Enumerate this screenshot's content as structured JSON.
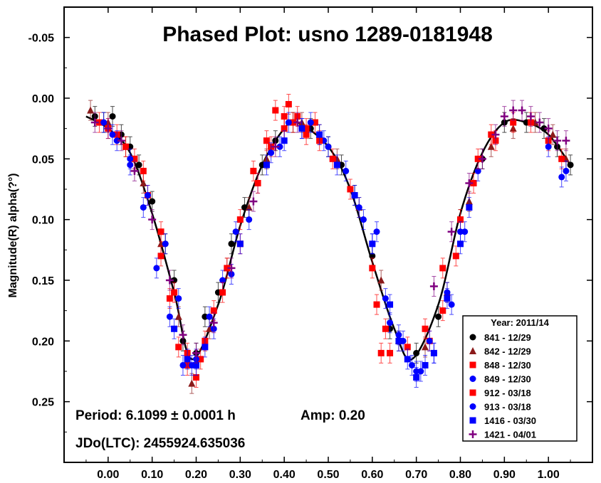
{
  "chart_data": {
    "type": "scatter",
    "title": "Phased Plot: usno 1289-0181948",
    "xlabel": "",
    "ylabel": "Magnitude(R) alpha(?°)",
    "xlim": [
      -0.1,
      1.1
    ],
    "ylim": [
      -0.075,
      0.3
    ],
    "y_inverted": true,
    "grid": false,
    "x_ticks": [
      0.0,
      0.1,
      0.2,
      0.3,
      0.4,
      0.5,
      0.6,
      0.7,
      0.8,
      0.9,
      1.0
    ],
    "x_tick_labels": [
      "0.00",
      "0.10",
      "0.20",
      "0.30",
      "0.40",
      "0.50",
      "0.60",
      "0.70",
      "0.80",
      "0.90",
      "1.00"
    ],
    "y_ticks": [
      -0.05,
      0.0,
      0.05,
      0.1,
      0.15,
      0.2,
      0.25
    ],
    "y_tick_labels": [
      "-0.05",
      "0.00",
      "0.05",
      "0.10",
      "0.15",
      "0.20",
      "0.25"
    ],
    "annotations": {
      "period": "Period: 6.1099 ± 0.0001 h",
      "amp": "Amp: 0.20",
      "jdo": "JDo(LTC): 2455924.635036"
    },
    "legend": {
      "position": "bottom-right",
      "title": "Year: 2011/14",
      "entries": [
        {
          "label": "841 - 12/29",
          "marker": "circle",
          "color": "#000000"
        },
        {
          "label": "842 - 12/29",
          "marker": "triangle",
          "color": "#8b1a1a"
        },
        {
          "label": "848 - 12/30",
          "marker": "square",
          "color": "#ff0000"
        },
        {
          "label": "849 - 12/30",
          "marker": "circle",
          "color": "#0000ff"
        },
        {
          "label": "912 - 03/18",
          "marker": "square",
          "color": "#ff0000"
        },
        {
          "label": "913 - 03/18",
          "marker": "circle",
          "color": "#0000ff"
        },
        {
          "label": "1416 - 03/30",
          "marker": "square",
          "color": "#0000ff"
        },
        {
          "label": "1421 - 04/01",
          "marker": "plus",
          "color": "#800080"
        }
      ]
    },
    "fit_curve": {
      "description_points_x": [
        -0.05,
        0.0,
        0.05,
        0.1,
        0.15,
        0.19,
        0.25,
        0.3,
        0.35,
        0.4,
        0.43,
        0.5,
        0.55,
        0.6,
        0.65,
        0.69,
        0.75,
        0.8,
        0.85,
        0.9,
        0.95,
        1.0,
        1.05
      ],
      "description_points_y": [
        0.015,
        0.025,
        0.045,
        0.095,
        0.16,
        0.215,
        0.17,
        0.105,
        0.055,
        0.025,
        0.02,
        0.04,
        0.075,
        0.135,
        0.19,
        0.215,
        0.17,
        0.095,
        0.045,
        0.02,
        0.02,
        0.03,
        0.055
      ]
    },
    "series": [
      {
        "name": "841 - 12/29",
        "marker": "circle",
        "color": "#000000",
        "x": [
          -0.03,
          -0.01,
          0.01,
          0.03,
          0.05,
          0.07,
          0.1,
          0.13,
          0.15,
          0.17,
          0.2,
          0.22,
          0.25,
          0.28,
          0.31,
          0.35,
          0.38,
          0.42,
          0.46,
          0.5,
          0.53,
          0.56,
          0.6,
          0.64,
          0.7,
          0.75,
          0.8,
          0.85,
          0.9,
          0.95,
          0.99,
          1.02,
          1.05
        ],
        "y": [
          0.015,
          0.02,
          0.015,
          0.03,
          0.04,
          0.055,
          0.085,
          0.12,
          0.15,
          0.2,
          0.21,
          0.18,
          0.16,
          0.12,
          0.09,
          0.055,
          0.035,
          0.02,
          0.025,
          0.04,
          0.055,
          0.08,
          0.13,
          0.19,
          0.21,
          0.18,
          0.1,
          0.05,
          0.02,
          0.02,
          0.025,
          0.04,
          0.055
        ]
      },
      {
        "name": "842 - 12/29",
        "marker": "triangle",
        "color": "#8b1a1a",
        "x": [
          -0.04,
          0.0,
          0.04,
          0.08,
          0.12,
          0.16,
          0.19,
          0.23,
          0.27,
          0.32,
          0.36,
          0.4,
          0.44,
          0.48,
          0.52,
          0.57,
          0.62,
          0.66,
          0.72,
          0.77,
          0.82,
          0.87,
          0.92,
          0.97,
          1.01,
          1.04
        ],
        "y": [
          0.01,
          0.02,
          0.04,
          0.07,
          0.12,
          0.18,
          0.235,
          0.19,
          0.14,
          0.09,
          0.05,
          0.025,
          0.02,
          0.03,
          0.05,
          0.09,
          0.15,
          0.2,
          0.205,
          0.16,
          0.085,
          0.04,
          0.025,
          0.02,
          0.03,
          0.05
        ]
      },
      {
        "name": "848 - 12/30",
        "marker": "square",
        "color": "#ff0000",
        "x": [
          -0.02,
          0.02,
          0.06,
          0.09,
          0.12,
          0.14,
          0.16,
          0.18,
          0.2,
          0.21,
          0.24,
          0.27,
          0.3,
          0.33,
          0.36,
          0.38,
          0.4,
          0.41,
          0.43,
          0.45,
          0.47,
          0.55,
          0.6,
          0.61,
          0.62,
          0.63,
          0.73,
          0.76,
          0.79,
          0.83,
          0.88,
          0.92,
          0.96,
          1.0,
          1.03
        ],
        "y": [
          0.02,
          0.03,
          0.05,
          0.08,
          0.13,
          0.165,
          0.205,
          0.22,
          0.23,
          0.215,
          0.175,
          0.14,
          0.1,
          0.06,
          0.035,
          0.01,
          0.025,
          0.005,
          0.015,
          0.03,
          0.02,
          0.075,
          0.14,
          0.17,
          0.21,
          0.19,
          0.2,
          0.175,
          0.13,
          0.07,
          0.035,
          0.02,
          0.02,
          0.035,
          0.05
        ]
      },
      {
        "name": "849 - 12/30",
        "marker": "circle",
        "color": "#0000ff",
        "x": [
          -0.01,
          0.02,
          0.05,
          0.08,
          0.11,
          0.14,
          0.17,
          0.2,
          0.23,
          0.26,
          0.29,
          0.34,
          0.39,
          0.44,
          0.49,
          0.54,
          0.58,
          0.61,
          0.63,
          0.66,
          0.69,
          0.71,
          0.74,
          0.78,
          0.81,
          0.84,
          1.0,
          1.03,
          1.04
        ],
        "y": [
          0.02,
          0.035,
          0.055,
          0.09,
          0.14,
          0.18,
          0.22,
          0.215,
          0.18,
          0.15,
          0.11,
          0.07,
          0.04,
          0.025,
          0.035,
          0.06,
          0.1,
          0.11,
          0.165,
          0.195,
          0.22,
          0.225,
          0.21,
          0.17,
          0.11,
          0.06,
          0.04,
          0.065,
          0.06
        ]
      },
      {
        "name": "912 - 03/18",
        "marker": "square",
        "color": "#ff0000",
        "x": [
          0.0,
          0.04,
          0.08,
          0.12,
          0.15,
          0.18,
          0.22,
          0.26,
          0.3,
          0.34,
          0.37,
          0.4,
          0.42,
          0.45,
          0.48,
          0.51,
          0.64,
          0.68,
          0.72,
          0.76,
          0.8,
          0.84,
          0.87
        ],
        "y": [
          0.025,
          0.04,
          0.06,
          0.11,
          0.16,
          0.21,
          0.2,
          0.16,
          0.12,
          0.07,
          0.04,
          0.015,
          0.02,
          0.025,
          0.035,
          0.05,
          0.21,
          0.205,
          0.19,
          0.14,
          0.1,
          0.05,
          0.03
        ]
      },
      {
        "name": "913 - 03/18",
        "marker": "circle",
        "color": "#0000ff",
        "x": [
          0.01,
          0.05,
          0.09,
          0.13,
          0.16,
          0.19,
          0.24,
          0.28,
          0.32,
          0.37,
          0.41,
          0.46,
          0.5,
          0.57,
          0.6,
          0.64,
          0.67,
          0.7,
          0.73,
          0.77,
          0.8
        ],
        "y": [
          0.03,
          0.05,
          0.08,
          0.12,
          0.165,
          0.22,
          0.19,
          0.145,
          0.1,
          0.045,
          0.02,
          0.02,
          0.04,
          0.09,
          0.12,
          0.185,
          0.2,
          0.225,
          0.2,
          0.16,
          0.11
        ]
      },
      {
        "name": "1416 - 03/30",
        "marker": "square",
        "color": "#0000ff",
        "x": [
          0.15,
          0.18,
          0.2,
          0.22,
          0.3,
          0.36,
          0.4,
          0.44,
          0.48,
          0.52,
          0.56,
          0.6,
          0.64,
          0.66,
          0.68,
          0.7,
          0.72,
          0.74,
          0.77,
          0.8,
          0.82
        ],
        "y": [
          0.19,
          0.215,
          0.22,
          0.205,
          0.12,
          0.055,
          0.035,
          0.025,
          0.03,
          0.055,
          0.08,
          0.12,
          0.17,
          0.2,
          0.215,
          0.23,
          0.22,
          0.21,
          0.165,
          0.12,
          0.09
        ]
      },
      {
        "name": "1421 - 04/01",
        "marker": "plus",
        "color": "#800080",
        "x": [
          -0.03,
          0.0,
          0.03,
          0.06,
          0.1,
          0.14,
          0.17,
          0.2,
          0.24,
          0.28,
          0.33,
          0.38,
          0.43,
          0.74,
          0.78,
          0.82,
          0.85,
          0.88,
          0.9,
          0.92,
          0.94,
          0.96,
          0.98,
          1.0,
          1.02,
          1.04
        ],
        "y": [
          0.02,
          0.025,
          0.035,
          0.06,
          0.1,
          0.15,
          0.195,
          0.21,
          0.185,
          0.14,
          0.085,
          0.04,
          0.02,
          0.155,
          0.11,
          0.07,
          0.05,
          0.03,
          0.015,
          0.01,
          0.01,
          0.015,
          0.02,
          0.025,
          0.035,
          0.035
        ]
      }
    ]
  }
}
